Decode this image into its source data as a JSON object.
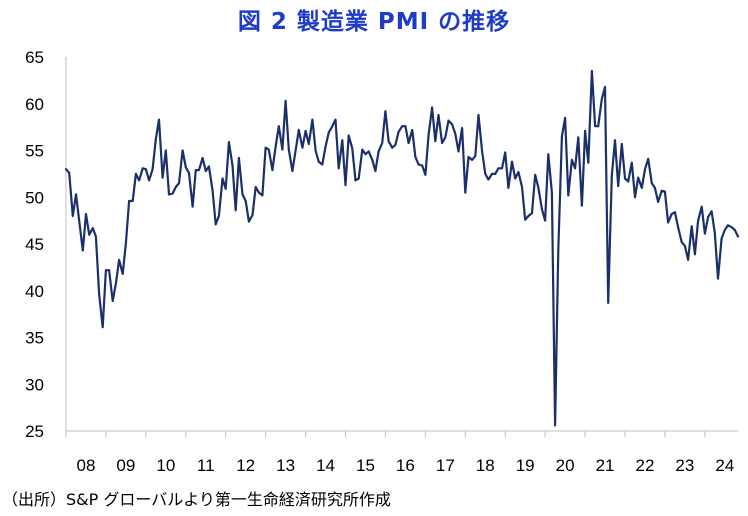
{
  "title": "図 2  製造業 PMI の推移",
  "source": "（出所）S&P グローバルより第一生命経済研究所作成",
  "colors": {
    "line": "#1b2f6b",
    "title": "#1f3cc8",
    "axis": "#bfbfbf"
  },
  "chart_data": {
    "type": "line",
    "title": "図 2  製造業 PMI の推移",
    "xlabel": "",
    "ylabel": "",
    "ylim": [
      25,
      65
    ],
    "yticks": [
      25,
      30,
      35,
      40,
      45,
      50,
      55,
      60,
      65
    ],
    "x_tick_labels": [
      "08",
      "09",
      "10",
      "11",
      "12",
      "13",
      "14",
      "15",
      "16",
      "17",
      "18",
      "19",
      "20",
      "21",
      "22",
      "23",
      "24"
    ],
    "x_range": [
      2008.0,
      2024.83
    ],
    "grid": false,
    "legend": "none",
    "series": [
      {
        "x": [
          2008.0,
          2008.08,
          2008.17,
          2008.25,
          2008.33,
          2008.42,
          2008.5,
          2008.58,
          2008.67,
          2008.75,
          2008.83,
          2008.92,
          2009.0,
          2009.08,
          2009.17,
          2009.25,
          2009.33,
          2009.42,
          2009.5,
          2009.58,
          2009.67,
          2009.75,
          2009.83,
          2009.92,
          2010.0,
          2010.08,
          2010.17,
          2010.25,
          2010.33,
          2010.42,
          2010.5,
          2010.58,
          2010.67,
          2010.75,
          2010.83,
          2010.92,
          2011.0,
          2011.08,
          2011.17,
          2011.25,
          2011.33,
          2011.42,
          2011.5,
          2011.58,
          2011.67,
          2011.75,
          2011.83,
          2011.92,
          2012.0,
          2012.08,
          2012.17,
          2012.25,
          2012.33,
          2012.42,
          2012.5,
          2012.58,
          2012.67,
          2012.75,
          2012.83,
          2012.92,
          2013.0,
          2013.08,
          2013.17,
          2013.25,
          2013.33,
          2013.42,
          2013.5,
          2013.58,
          2013.67,
          2013.75,
          2013.83,
          2013.92,
          2014.0,
          2014.08,
          2014.17,
          2014.25,
          2014.33,
          2014.42,
          2014.5,
          2014.58,
          2014.67,
          2014.75,
          2014.83,
          2014.92,
          2015.0,
          2015.08,
          2015.17,
          2015.25,
          2015.33,
          2015.42,
          2015.5,
          2015.58,
          2015.67,
          2015.75,
          2015.83,
          2015.92,
          2016.0,
          2016.08,
          2016.17,
          2016.25,
          2016.33,
          2016.42,
          2016.5,
          2016.58,
          2016.67,
          2016.75,
          2016.83,
          2016.92,
          2017.0,
          2017.08,
          2017.17,
          2017.25,
          2017.33,
          2017.42,
          2017.5,
          2017.58,
          2017.67,
          2017.75,
          2017.83,
          2017.92,
          2018.0,
          2018.08,
          2018.17,
          2018.25,
          2018.33,
          2018.42,
          2018.5,
          2018.58,
          2018.67,
          2018.75,
          2018.83,
          2018.92,
          2019.0,
          2019.08,
          2019.17,
          2019.25,
          2019.33,
          2019.42,
          2019.5,
          2019.58,
          2019.67,
          2019.75,
          2019.83,
          2019.92,
          2020.0,
          2020.08,
          2020.17,
          2020.25,
          2020.33,
          2020.42,
          2020.5,
          2020.58,
          2020.67,
          2020.75,
          2020.83,
          2020.92,
          2021.0,
          2021.08,
          2021.17,
          2021.25,
          2021.33,
          2021.42,
          2021.5,
          2021.58,
          2021.67,
          2021.75,
          2021.83,
          2021.92,
          2022.0,
          2022.08,
          2022.17,
          2022.25,
          2022.33,
          2022.42,
          2022.5,
          2022.58,
          2022.67,
          2022.75,
          2022.83,
          2022.92,
          2023.0,
          2023.08,
          2023.17,
          2023.25,
          2023.33,
          2023.42,
          2023.5,
          2023.58,
          2023.67,
          2023.75,
          2023.83,
          2023.92,
          2024.0,
          2024.08,
          2024.17,
          2024.25,
          2024.33,
          2024.42,
          2024.5,
          2024.58,
          2024.67,
          2024.75,
          2024.83
        ],
        "values": [
          53.0,
          52.6,
          48.0,
          50.3,
          47.5,
          44.3,
          48.2,
          46.0,
          46.7,
          45.8,
          39.7,
          36.1,
          42.2,
          42.2,
          38.9,
          40.8,
          43.3,
          41.8,
          45.1,
          49.6,
          49.6,
          52.5,
          51.8,
          53.1,
          53.0,
          51.8,
          53.0,
          56.2,
          58.3,
          52.1,
          55.0,
          50.3,
          50.4,
          51.1,
          51.5,
          55.0,
          53.2,
          52.6,
          49.0,
          52.9,
          52.9,
          54.2,
          52.8,
          53.3,
          50.8,
          47.1,
          48.0,
          52.0,
          50.9,
          55.9,
          53.4,
          48.6,
          54.2,
          50.3,
          49.6,
          47.4,
          48.1,
          51.1,
          50.5,
          50.2,
          55.3,
          55.1,
          52.9,
          55.4,
          57.6,
          55.1,
          60.3,
          55.1,
          52.8,
          55.0,
          57.2,
          55.3,
          57.1,
          55.7,
          58.3,
          55.0,
          53.8,
          53.5,
          55.4,
          56.9,
          57.6,
          58.3,
          53.1,
          56.1,
          51.3,
          56.6,
          55.2,
          51.8,
          52.0,
          55.1,
          54.6,
          54.9,
          54.0,
          52.8,
          54.9,
          55.8,
          59.2,
          56.0,
          55.3,
          55.6,
          57.0,
          57.6,
          57.6,
          55.8,
          57.2,
          54.3,
          53.5,
          53.4,
          52.4,
          56.7,
          59.6,
          56.0,
          58.8,
          55.8,
          56.4,
          58.2,
          57.8,
          56.8,
          54.9,
          57.4,
          50.5,
          54.3,
          54.0,
          54.4,
          58.8,
          54.9,
          52.5,
          51.9,
          52.5,
          52.5,
          53.1,
          53.1,
          54.8,
          51.0,
          53.8,
          52.0,
          52.7,
          51.1,
          47.6,
          48.0,
          48.3,
          52.4,
          51.0,
          48.7,
          47.5,
          54.6,
          50.5,
          25.6,
          44.4,
          56.5,
          58.5,
          50.2,
          54.0,
          53.1,
          56.4,
          49.1,
          57.1,
          53.7,
          63.5,
          57.6,
          57.6,
          60.5,
          61.8,
          38.7,
          52.3,
          56.1,
          51.2,
          55.7,
          52.0,
          51.7,
          53.7,
          50.0,
          52.1,
          51.0,
          53.0,
          54.1,
          51.5,
          51.0,
          49.5,
          50.7,
          50.6,
          47.3,
          48.2,
          48.4,
          46.8,
          45.2,
          44.8,
          43.3,
          46.9,
          43.9,
          47.5,
          49.0,
          46.1,
          47.9,
          48.5,
          46.2,
          41.3,
          45.6,
          46.5,
          47.0,
          46.8,
          46.5,
          45.8
        ]
      }
    ]
  }
}
